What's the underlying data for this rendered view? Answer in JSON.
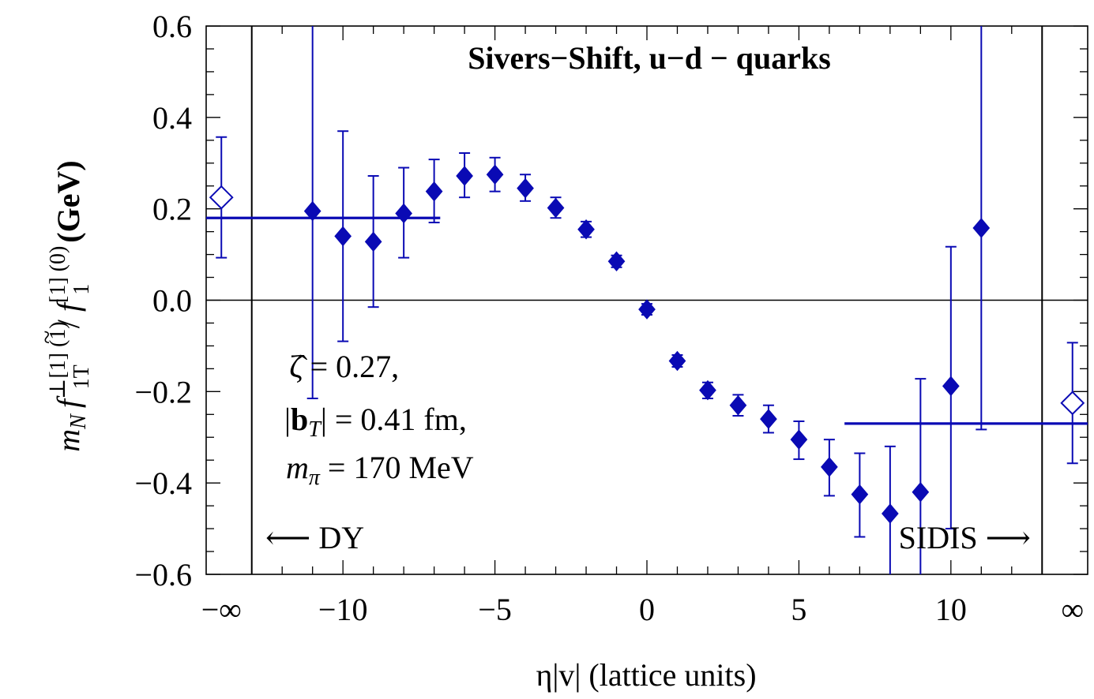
{
  "chart_data": {
    "type": "scatter",
    "title": "Sivers−Shift, u−d − quarks",
    "xlabel": "η|v|  (lattice units)",
    "ylabel": "m_N f̃⊥[1](1) 1T / f̃[1](0) 1  (GeV)",
    "ylabel_parts": {
      "mn": "m",
      "mn_sub": "N",
      "f1": "f",
      "f1_tilde": "~",
      "f1_sup": "⊥[1] (1)",
      "f1_sub": "1T",
      "slash": "/",
      "f2": "f",
      "f2_tilde": "~",
      "f2_sup": "[1] (0)",
      "f2_sub": "1",
      "unit": "(GeV)"
    },
    "xlim": [
      -14.5,
      14.5
    ],
    "ylim": [
      -0.6,
      0.6
    ],
    "x_ticks": [
      {
        "x": -14,
        "label": "−∞"
      },
      {
        "x": -10,
        "label": "−10"
      },
      {
        "x": -5,
        "label": "−5"
      },
      {
        "x": 0,
        "label": "0"
      },
      {
        "x": 5,
        "label": "5"
      },
      {
        "x": 10,
        "label": "10"
      },
      {
        "x": 14,
        "label": "∞"
      }
    ],
    "y_ticks": [
      {
        "y": 0.6,
        "label": "0.6"
      },
      {
        "y": 0.4,
        "label": "0.4"
      },
      {
        "y": 0.2,
        "label": "0.2"
      },
      {
        "y": 0.0,
        "label": "0.0"
      },
      {
        "y": -0.2,
        "label": "−0.2"
      },
      {
        "y": -0.4,
        "label": "−0.4"
      },
      {
        "y": -0.6,
        "label": "−0.6"
      }
    ],
    "series": [
      {
        "marker": "filled-diamond",
        "points": [
          {
            "x": -11,
            "y": 0.195,
            "err_lo": -0.215,
            "err_hi": 0.65
          },
          {
            "x": -10,
            "y": 0.14,
            "err_lo": -0.09,
            "err_hi": 0.37
          },
          {
            "x": -9,
            "y": 0.128,
            "err_lo": -0.015,
            "err_hi": 0.272
          },
          {
            "x": -8,
            "y": 0.19,
            "err_lo": 0.093,
            "err_hi": 0.29
          },
          {
            "x": -7,
            "y": 0.238,
            "err_lo": 0.17,
            "err_hi": 0.308
          },
          {
            "x": -6,
            "y": 0.272,
            "err_lo": 0.225,
            "err_hi": 0.322
          },
          {
            "x": -5,
            "y": 0.275,
            "err_lo": 0.238,
            "err_hi": 0.312
          },
          {
            "x": -4,
            "y": 0.245,
            "err_lo": 0.217,
            "err_hi": 0.275
          },
          {
            "x": -3,
            "y": 0.202,
            "err_lo": 0.18,
            "err_hi": 0.225
          },
          {
            "x": -2,
            "y": 0.155,
            "err_lo": 0.138,
            "err_hi": 0.172
          },
          {
            "x": -1,
            "y": 0.085,
            "err_lo": 0.072,
            "err_hi": 0.098
          },
          {
            "x": 0,
            "y": -0.02,
            "err_lo": -0.032,
            "err_hi": -0.008
          },
          {
            "x": 1,
            "y": -0.133,
            "err_lo": -0.146,
            "err_hi": -0.12
          },
          {
            "x": 2,
            "y": -0.197,
            "err_lo": -0.215,
            "err_hi": -0.18
          },
          {
            "x": 3,
            "y": -0.23,
            "err_lo": -0.253,
            "err_hi": -0.207
          },
          {
            "x": 4,
            "y": -0.26,
            "err_lo": -0.29,
            "err_hi": -0.23
          },
          {
            "x": 5,
            "y": -0.305,
            "err_lo": -0.348,
            "err_hi": -0.265
          },
          {
            "x": 6,
            "y": -0.365,
            "err_lo": -0.428,
            "err_hi": -0.305
          },
          {
            "x": 7,
            "y": -0.425,
            "err_lo": -0.518,
            "err_hi": -0.335
          },
          {
            "x": 8,
            "y": -0.467,
            "err_lo": -0.65,
            "err_hi": -0.32
          },
          {
            "x": 9,
            "y": -0.42,
            "err_lo": -0.65,
            "err_hi": -0.172
          },
          {
            "x": 10,
            "y": -0.188,
            "err_lo": -0.5,
            "err_hi": 0.117
          },
          {
            "x": 11,
            "y": 0.158,
            "err_lo": -0.283,
            "err_hi": 0.65
          }
        ]
      },
      {
        "marker": "open-diamond",
        "points": [
          {
            "x": -14,
            "y": 0.225,
            "err_lo": 0.093,
            "err_hi": 0.357
          },
          {
            "x": 14,
            "y": -0.225,
            "err_lo": -0.357,
            "err_hi": -0.093
          }
        ]
      }
    ],
    "plateau_lines": [
      {
        "x_from": -14.5,
        "x_to": -6.8,
        "y": 0.18
      },
      {
        "x_from": 6.5,
        "x_to": 14.5,
        "y": -0.27
      }
    ],
    "vertical_lines": [
      -13,
      13
    ],
    "zero_line": true,
    "grid": false,
    "annotations": {
      "zeta": "ζ̂ = 0.27,",
      "bt_prefix": "|",
      "bt_bold": "b",
      "bt_sub": "T",
      "bt_suffix": "| = 0.41 fm,",
      "mpi_var": "m",
      "mpi_sub": "π",
      "mpi_value": " = 170 MeV",
      "dy": "⟵ DY",
      "sidis": "SIDIS ⟶"
    },
    "colors": {
      "data": "#0a0ab4",
      "axes": "#000000"
    }
  }
}
